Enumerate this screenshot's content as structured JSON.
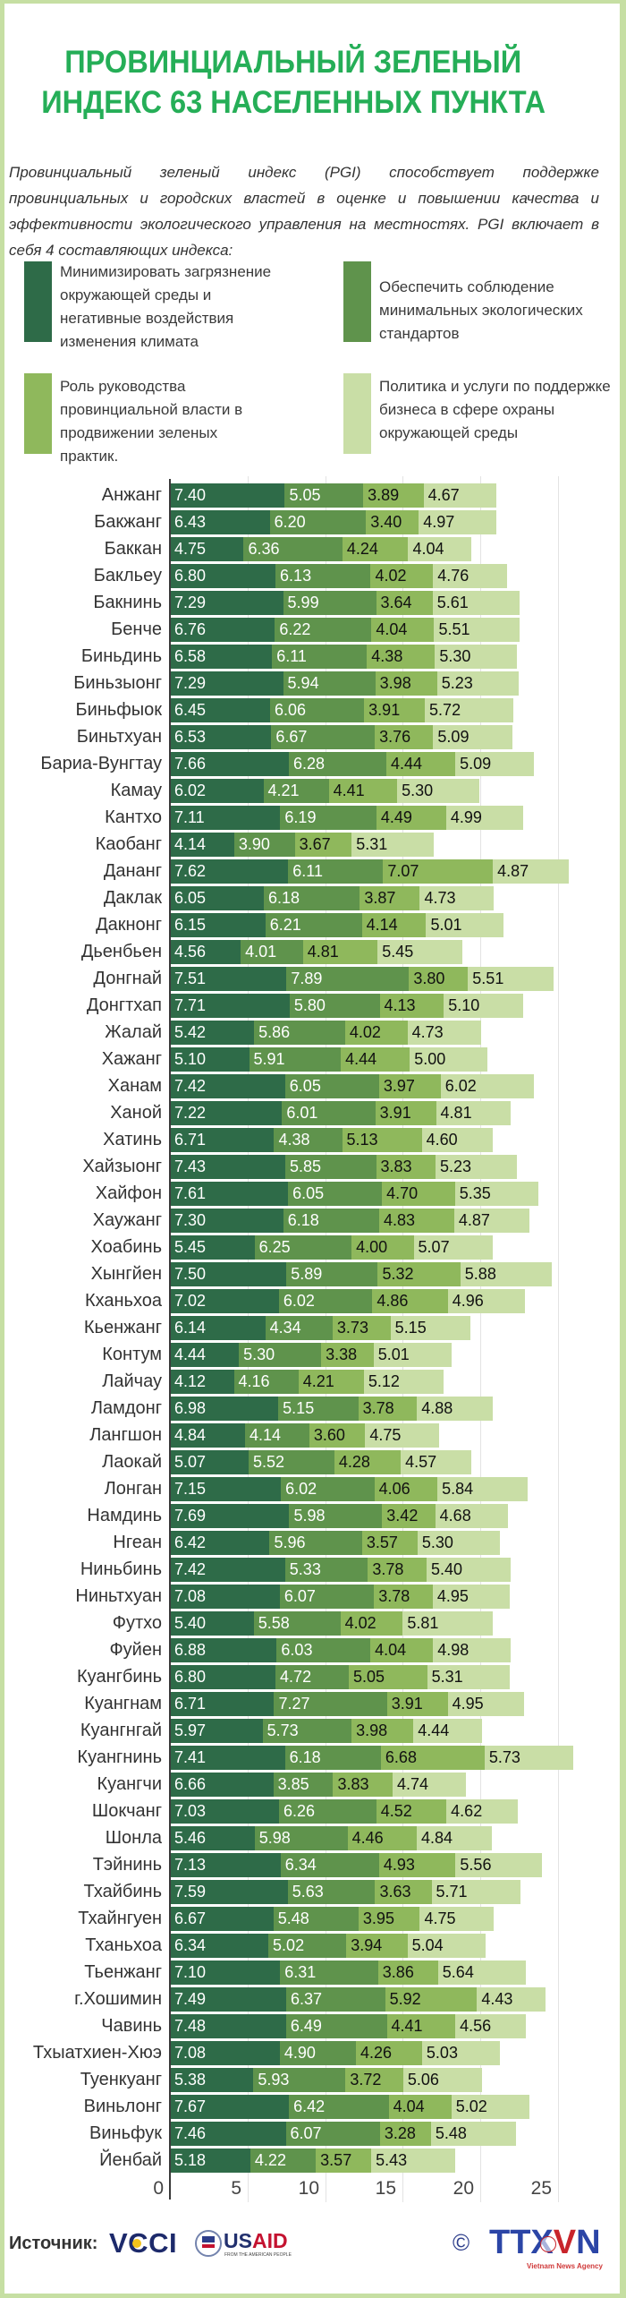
{
  "title": {
    "line1": "ПРОВИНЦИАЛЬНЫЙ ЗЕЛЕНЫЙ",
    "line2": "ИНДЕКС 63 НАСЕЛЕННЫХ ПУНКТА"
  },
  "intro": {
    "lines": [
      "Провинциальный зеленый индекс (PGI) способствует поддержке",
      "провинциальных и городских властей в оценке и повышении качества и",
      "эффективности экологического управления на местностях. PGI включает в",
      "себя 4 составляющих индекса:"
    ]
  },
  "colors": {
    "title": "#25ae57",
    "border": "#c6dfa3"
  },
  "chart_data": {
    "type": "bar",
    "orientation": "horizontal",
    "stacked": true,
    "title": "ПРОВИНЦИАЛЬНЫЙ ЗЕЛЕНЫЙ ИНДЕКС 63 НАСЕЛЕННЫХ ПУНКТА",
    "xlabel": "",
    "ylabel": "",
    "xlim": [
      0,
      25
    ],
    "x_ticks": [
      0,
      5,
      10,
      15,
      20,
      25
    ],
    "grid": true,
    "legend_position": "top",
    "categories": [
      "Анжанг",
      "Бакжанг",
      "Баккан",
      "Бакльеу",
      "Бакнинь",
      "Бенче",
      "Биньдинь",
      "Биньзыонг",
      "Биньфыок",
      "Биньтхуан",
      "Бариа-Вунгтау",
      "Камау",
      "Кантхо",
      "Каобанг",
      "Дананг",
      "Даклак",
      "Дакнонг",
      "Дьенбьен",
      "Донгнай",
      "Донгтхап",
      "Жалай",
      "Хажанг",
      "Ханам",
      "Ханой",
      "Хатинь",
      "Хайзыонг",
      "Хайфон",
      "Хаужанг",
      "Хоабинь",
      "Хынгйен",
      "Кханьхоа",
      "Кьенжанг",
      "Контум",
      "Лайчау",
      "Ламдонг",
      "Лангшон",
      "Лаокай",
      "Лонган",
      "Намдинь",
      "Нгеан",
      "Ниньбинь",
      "Ниньтхуан",
      "Футхо",
      "Фуйен",
      "Куангбинь",
      "Куангнам",
      "Куангнгай",
      "Куангнинь",
      "Куангчи",
      "Шокчанг",
      "Шонла",
      "Тэйнинь",
      "Тхайбинь",
      "Тхайнгуен",
      "Тханьхоа",
      "Тьенжанг",
      "г.Хошимин",
      "Чавинь",
      "Тхыатхиен-Хюэ",
      "Туенкуанг",
      "Виньлонг",
      "Виньфук",
      "Йенбай"
    ],
    "series": [
      {
        "name": "Минимизировать загрязнение\nокружающей среды и\nнегативные воздействия\nизменения климата",
        "color": "#2e6b48",
        "label_color": "#ffffff",
        "values": [
          7.4,
          6.43,
          4.75,
          6.8,
          7.29,
          6.76,
          6.58,
          7.29,
          6.45,
          6.53,
          7.66,
          6.02,
          7.11,
          4.14,
          7.62,
          6.05,
          6.15,
          4.56,
          7.51,
          7.71,
          5.42,
          5.1,
          7.42,
          7.22,
          6.71,
          7.43,
          7.61,
          7.3,
          5.45,
          7.5,
          7.02,
          6.14,
          4.44,
          4.12,
          6.98,
          4.84,
          5.07,
          7.15,
          7.69,
          6.42,
          7.42,
          7.08,
          5.4,
          6.88,
          6.8,
          6.71,
          5.97,
          7.41,
          6.66,
          7.03,
          5.46,
          7.13,
          7.59,
          6.67,
          6.34,
          7.1,
          7.49,
          7.48,
          7.08,
          5.38,
          7.67,
          7.46,
          5.18
        ]
      },
      {
        "name": "Обеспечить соблюдение\nминимальных экологических\nстандартов",
        "color": "#5f934c",
        "label_color": "#ffffff",
        "values": [
          5.05,
          6.2,
          6.36,
          6.13,
          5.99,
          6.22,
          6.11,
          5.94,
          6.06,
          6.67,
          6.28,
          4.21,
          6.19,
          3.9,
          6.11,
          6.18,
          6.21,
          4.01,
          7.89,
          5.8,
          5.86,
          5.91,
          6.05,
          6.01,
          4.38,
          5.85,
          6.05,
          6.18,
          6.25,
          5.89,
          6.02,
          4.34,
          5.3,
          4.16,
          5.15,
          4.14,
          5.52,
          6.02,
          5.98,
          5.96,
          5.33,
          6.07,
          5.58,
          6.03,
          4.72,
          7.27,
          5.73,
          6.18,
          3.85,
          6.26,
          5.98,
          6.34,
          5.63,
          5.48,
          5.02,
          6.31,
          6.37,
          6.49,
          4.9,
          5.93,
          6.42,
          6.07,
          4.22
        ]
      },
      {
        "name": "Роль руководства\nпровинциальной власти в\nпродвижении зеленых\nпрактик.",
        "color": "#8fb85c",
        "label_color": "#111111",
        "values": [
          3.89,
          3.4,
          4.24,
          4.02,
          3.64,
          4.04,
          4.38,
          3.98,
          3.91,
          3.76,
          4.44,
          4.41,
          4.49,
          3.67,
          7.07,
          3.87,
          4.14,
          4.81,
          3.8,
          4.13,
          4.02,
          4.44,
          3.97,
          3.91,
          5.13,
          3.83,
          4.7,
          4.83,
          4.0,
          5.32,
          4.86,
          3.73,
          3.38,
          4.21,
          3.78,
          3.6,
          4.28,
          4.06,
          3.42,
          3.57,
          3.78,
          3.78,
          4.02,
          4.04,
          5.05,
          3.91,
          3.98,
          6.68,
          3.83,
          4.52,
          4.46,
          4.93,
          3.63,
          3.95,
          3.94,
          3.86,
          5.92,
          4.41,
          4.26,
          3.72,
          4.04,
          3.28,
          3.57
        ]
      },
      {
        "name": "Политика и услуги по поддержке\nбизнеса в сфере охраны\nокружающей среды",
        "color": "#c9dea6",
        "label_color": "#111111",
        "values": [
          4.67,
          4.97,
          4.04,
          4.76,
          5.61,
          5.51,
          5.3,
          5.23,
          5.72,
          5.09,
          5.09,
          5.3,
          4.99,
          5.31,
          4.87,
          4.73,
          5.01,
          5.45,
          5.51,
          5.1,
          4.73,
          5.0,
          6.02,
          4.81,
          4.6,
          5.23,
          5.35,
          4.87,
          5.07,
          5.88,
          4.96,
          5.15,
          5.01,
          5.12,
          4.88,
          4.75,
          4.57,
          5.84,
          4.68,
          5.3,
          5.4,
          4.95,
          5.81,
          4.98,
          5.31,
          4.95,
          4.44,
          5.73,
          4.74,
          4.62,
          4.84,
          5.56,
          5.71,
          4.75,
          5.04,
          5.64,
          4.43,
          4.56,
          5.03,
          5.06,
          5.02,
          5.48,
          5.43
        ]
      }
    ]
  },
  "footer": {
    "source_label": "Источник:",
    "vcci": "VCCI",
    "usaid_part1": "US",
    "usaid_part2": "AID",
    "usaid_tagline": "FROM THE AMERICAN PEOPLE",
    "copyright": "©",
    "ttxvn_part1": "TTX",
    "ttxvn_part2": "V",
    "ttxvn_part3": "N",
    "ttxvn_tagline": "Vietnam News Agency"
  }
}
